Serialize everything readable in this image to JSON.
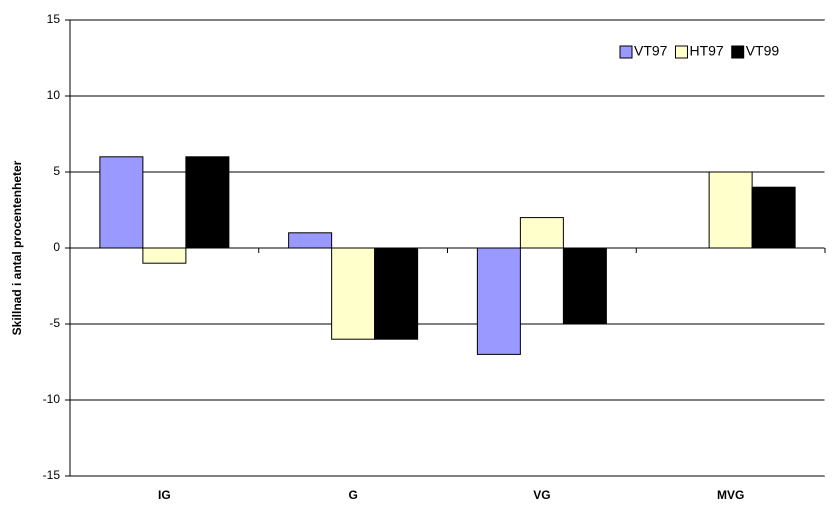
{
  "chart_data": {
    "type": "bar",
    "y_label": "Skillnad i antal procentenheter",
    "categories": [
      "IG",
      "G",
      "VG",
      "MVG"
    ],
    "series": [
      {
        "name": "VT97",
        "color": "#9999ff",
        "values": [
          6,
          1,
          -7,
          0
        ]
      },
      {
        "name": "HT97",
        "color": "#ffffcc",
        "values": [
          -1,
          -6,
          2,
          5
        ]
      },
      {
        "name": "VT99",
        "color": "#000000",
        "values": [
          6,
          -6,
          -5,
          4
        ]
      }
    ],
    "ylim": [
      -15,
      15
    ],
    "yticks": [
      -15,
      -10,
      -5,
      0,
      5,
      10,
      15
    ],
    "grid": true,
    "legend": "top-right"
  }
}
